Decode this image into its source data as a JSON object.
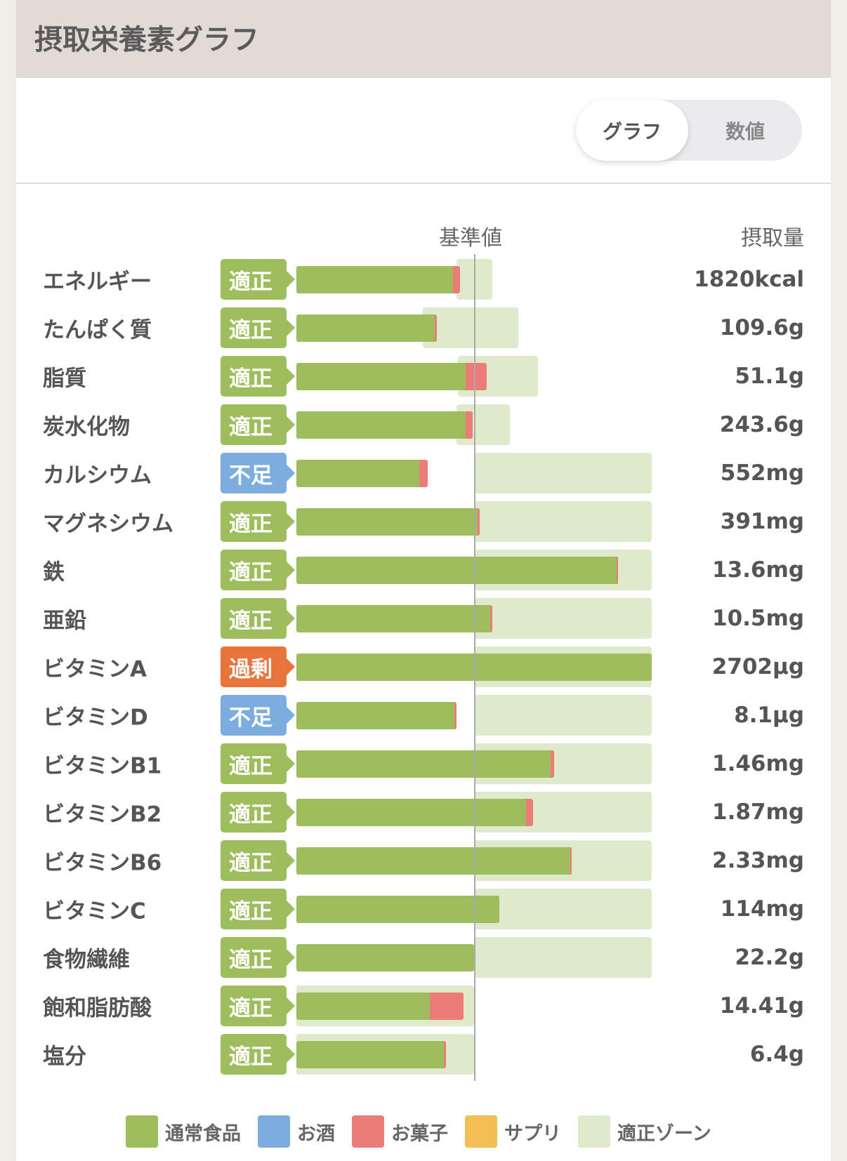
{
  "header": {
    "title": "摂取栄養素グラフ"
  },
  "toggle": {
    "graph": "グラフ",
    "numbers": "数値",
    "selected": "グラフ"
  },
  "columns": {
    "reference": "基準値",
    "intake": "摂取量"
  },
  "colors": {
    "normal_food": "#9ebe5e",
    "alcohol": "#7baedf",
    "snacks": "#ec7c78",
    "supplement": "#f2bf55",
    "zone": "#dfe9cc",
    "status_ok": "#9ebe5e",
    "status_low": "#7baedf",
    "status_high": "#e8743b"
  },
  "legend": [
    {
      "label": "通常食品",
      "color": "#9ebe5e"
    },
    {
      "label": "お酒",
      "color": "#7baedf"
    },
    {
      "label": "お菓子",
      "color": "#ec7c78"
    },
    {
      "label": "サプリ",
      "color": "#f2bf55"
    },
    {
      "label": "適正ゾーン",
      "color": "#dfe9cc"
    }
  ],
  "chart_data": {
    "type": "bar",
    "orientation": "horizontal-stacked",
    "unit": "% of reference value",
    "reference_line": 100,
    "xlim": [
      0,
      200
    ],
    "rows": [
      {
        "name": "エネルギー",
        "status": "適正",
        "value": "1820kcal",
        "normal_food": 88,
        "snacks": 4,
        "zone": [
          90,
          110
        ]
      },
      {
        "name": "たんぱく質",
        "status": "適正",
        "value": "109.6g",
        "normal_food": 78,
        "snacks": 1,
        "zone": [
          71,
          125
        ]
      },
      {
        "name": "脂質",
        "status": "適正",
        "value": "51.1g",
        "normal_food": 95,
        "snacks": 12,
        "zone": [
          91,
          136
        ]
      },
      {
        "name": "炭水化物",
        "status": "適正",
        "value": "243.6g",
        "normal_food": 95,
        "snacks": 4,
        "zone": [
          90,
          120
        ]
      },
      {
        "name": "カルシウム",
        "status": "不足",
        "value": "552mg",
        "normal_food": 69,
        "snacks": 5,
        "zone": [
          100,
          200
        ]
      },
      {
        "name": "マグネシウム",
        "status": "適正",
        "value": "391mg",
        "normal_food": 102,
        "snacks": 1,
        "zone": [
          100,
          200
        ]
      },
      {
        "name": "鉄",
        "status": "適正",
        "value": "13.6mg",
        "normal_food": 180,
        "snacks": 1,
        "zone": [
          100,
          200
        ]
      },
      {
        "name": "亜鉛",
        "status": "適正",
        "value": "10.5mg",
        "normal_food": 109,
        "snacks": 1,
        "zone": [
          100,
          200
        ]
      },
      {
        "name": "ビタミンA",
        "status": "過剰",
        "value": "2702µg",
        "normal_food": 200,
        "snacks": 0,
        "zone": [
          100,
          200
        ]
      },
      {
        "name": "ビタミンD",
        "status": "不足",
        "value": "8.1µg",
        "normal_food": 89,
        "snacks": 1,
        "zone": [
          100,
          200
        ]
      },
      {
        "name": "ビタミンB1",
        "status": "適正",
        "value": "1.46mg",
        "normal_food": 143,
        "snacks": 2,
        "zone": [
          100,
          200
        ]
      },
      {
        "name": "ビタミンB2",
        "status": "適正",
        "value": "1.87mg",
        "normal_food": 129,
        "snacks": 4,
        "zone": [
          100,
          200
        ]
      },
      {
        "name": "ビタミンB6",
        "status": "適正",
        "value": "2.33mg",
        "normal_food": 154,
        "snacks": 1,
        "zone": [
          100,
          200
        ]
      },
      {
        "name": "ビタミンC",
        "status": "適正",
        "value": "114mg",
        "normal_food": 114,
        "snacks": 0,
        "zone": [
          100,
          200
        ]
      },
      {
        "name": "食物繊維",
        "status": "適正",
        "value": "22.2g",
        "normal_food": 100,
        "snacks": 0,
        "zone": [
          100,
          200
        ]
      },
      {
        "name": "飽和脂肪酸",
        "status": "適正",
        "value": "14.41g",
        "normal_food": 75,
        "snacks": 19,
        "zone": [
          0,
          100
        ]
      },
      {
        "name": "塩分",
        "status": "適正",
        "value": "6.4g",
        "normal_food": 83,
        "snacks": 1,
        "zone": [
          0,
          100
        ]
      }
    ]
  }
}
